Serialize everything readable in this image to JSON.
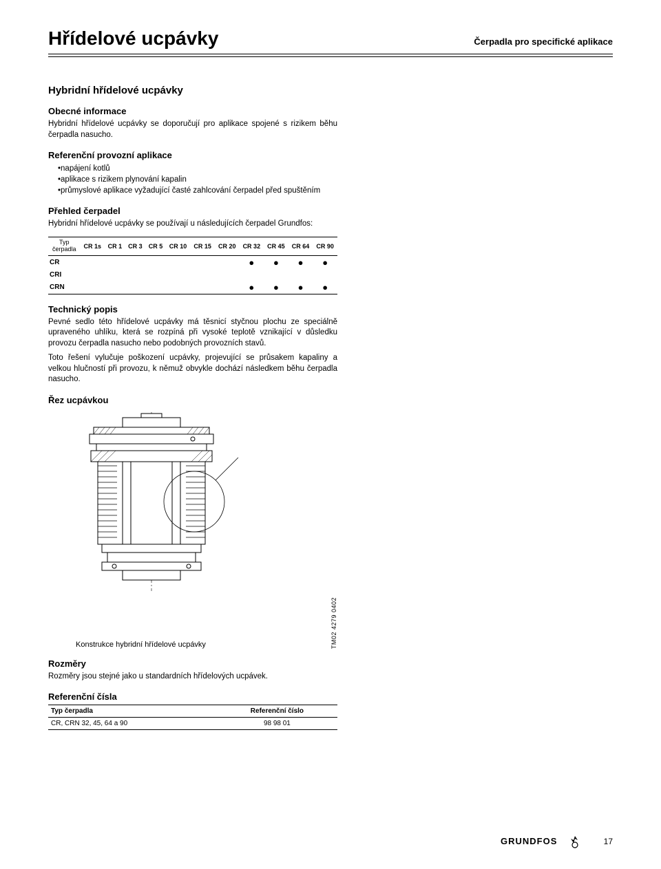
{
  "header": {
    "title": "Hřídelové ucpávky",
    "right": "Čerpadla pro specifické aplikace"
  },
  "section_title": "Hybridní hřídelové ucpávky",
  "general_info": {
    "heading": "Obecné informace",
    "text": "Hybridní hřídelové ucpávky se doporučují pro aplikace spojené s rizikem běhu čerpadla nasucho."
  },
  "ref_apps": {
    "heading": "Referenční provozní aplikace",
    "items": [
      "napájení kotlů",
      "aplikace s rizikem plynování kapalin",
      "průmyslové aplikace vyžadující časté zahlcování čerpadel před spuštěním"
    ]
  },
  "overview": {
    "heading": "Přehled čerpadel",
    "text": "Hybridní hřídelové ucpávky se používají u následujících čerpadel Grundfos:"
  },
  "pump_table": {
    "row_header": "Typ čerpadla",
    "columns": [
      "CR 1s",
      "CR 1",
      "CR 3",
      "CR 5",
      "CR 10",
      "CR 15",
      "CR 20",
      "CR 32",
      "CR 45",
      "CR 64",
      "CR 90"
    ],
    "rows": [
      {
        "label": "CR",
        "dots": [
          "",
          "",
          "",
          "",
          "",
          "",
          "",
          "●",
          "●",
          "●",
          "●"
        ]
      },
      {
        "label": "CRI",
        "dots": [
          "",
          "",
          "",
          "",
          "",
          "",
          "",
          "",
          "",
          "",
          ""
        ]
      },
      {
        "label": "CRN",
        "dots": [
          "",
          "",
          "",
          "",
          "",
          "",
          "",
          "●",
          "●",
          "●",
          "●"
        ]
      }
    ]
  },
  "tech": {
    "heading": "Technický popis",
    "p1": "Pevné sedlo této hřídelové ucpávky má těsnicí styčnou plochu ze speciálně upraveného uhlíku, která se rozpíná při vysoké teplotě vznikající v důsledku provozu čerpadla nasucho nebo podobných provozních stavů.",
    "p2": "Toto řešení vylučuje poškození ucpávky, projevující se průsakem kapaliny a velkou hlučností při provozu, k němuž obvykle dochází následkem běhu čerpadla nasucho."
  },
  "cross_section": {
    "heading": "Řez ucpávkou",
    "caption": "Konstrukce hybridní hřídelové ucpávky",
    "code": "TM02 4279 0402"
  },
  "dimensions": {
    "heading": "Rozměry",
    "text": "Rozměry jsou stejné jako u standardních hřídelových ucpávek."
  },
  "ref_numbers": {
    "heading": "Referenční čísla",
    "columns": [
      "Typ čerpadla",
      "Referenční číslo"
    ],
    "rows": [
      [
        "CR, CRN 32, 45, 64 a 90",
        "98 98 01"
      ]
    ]
  },
  "footer": {
    "brand": "GRUNDFOS",
    "page": "17"
  }
}
